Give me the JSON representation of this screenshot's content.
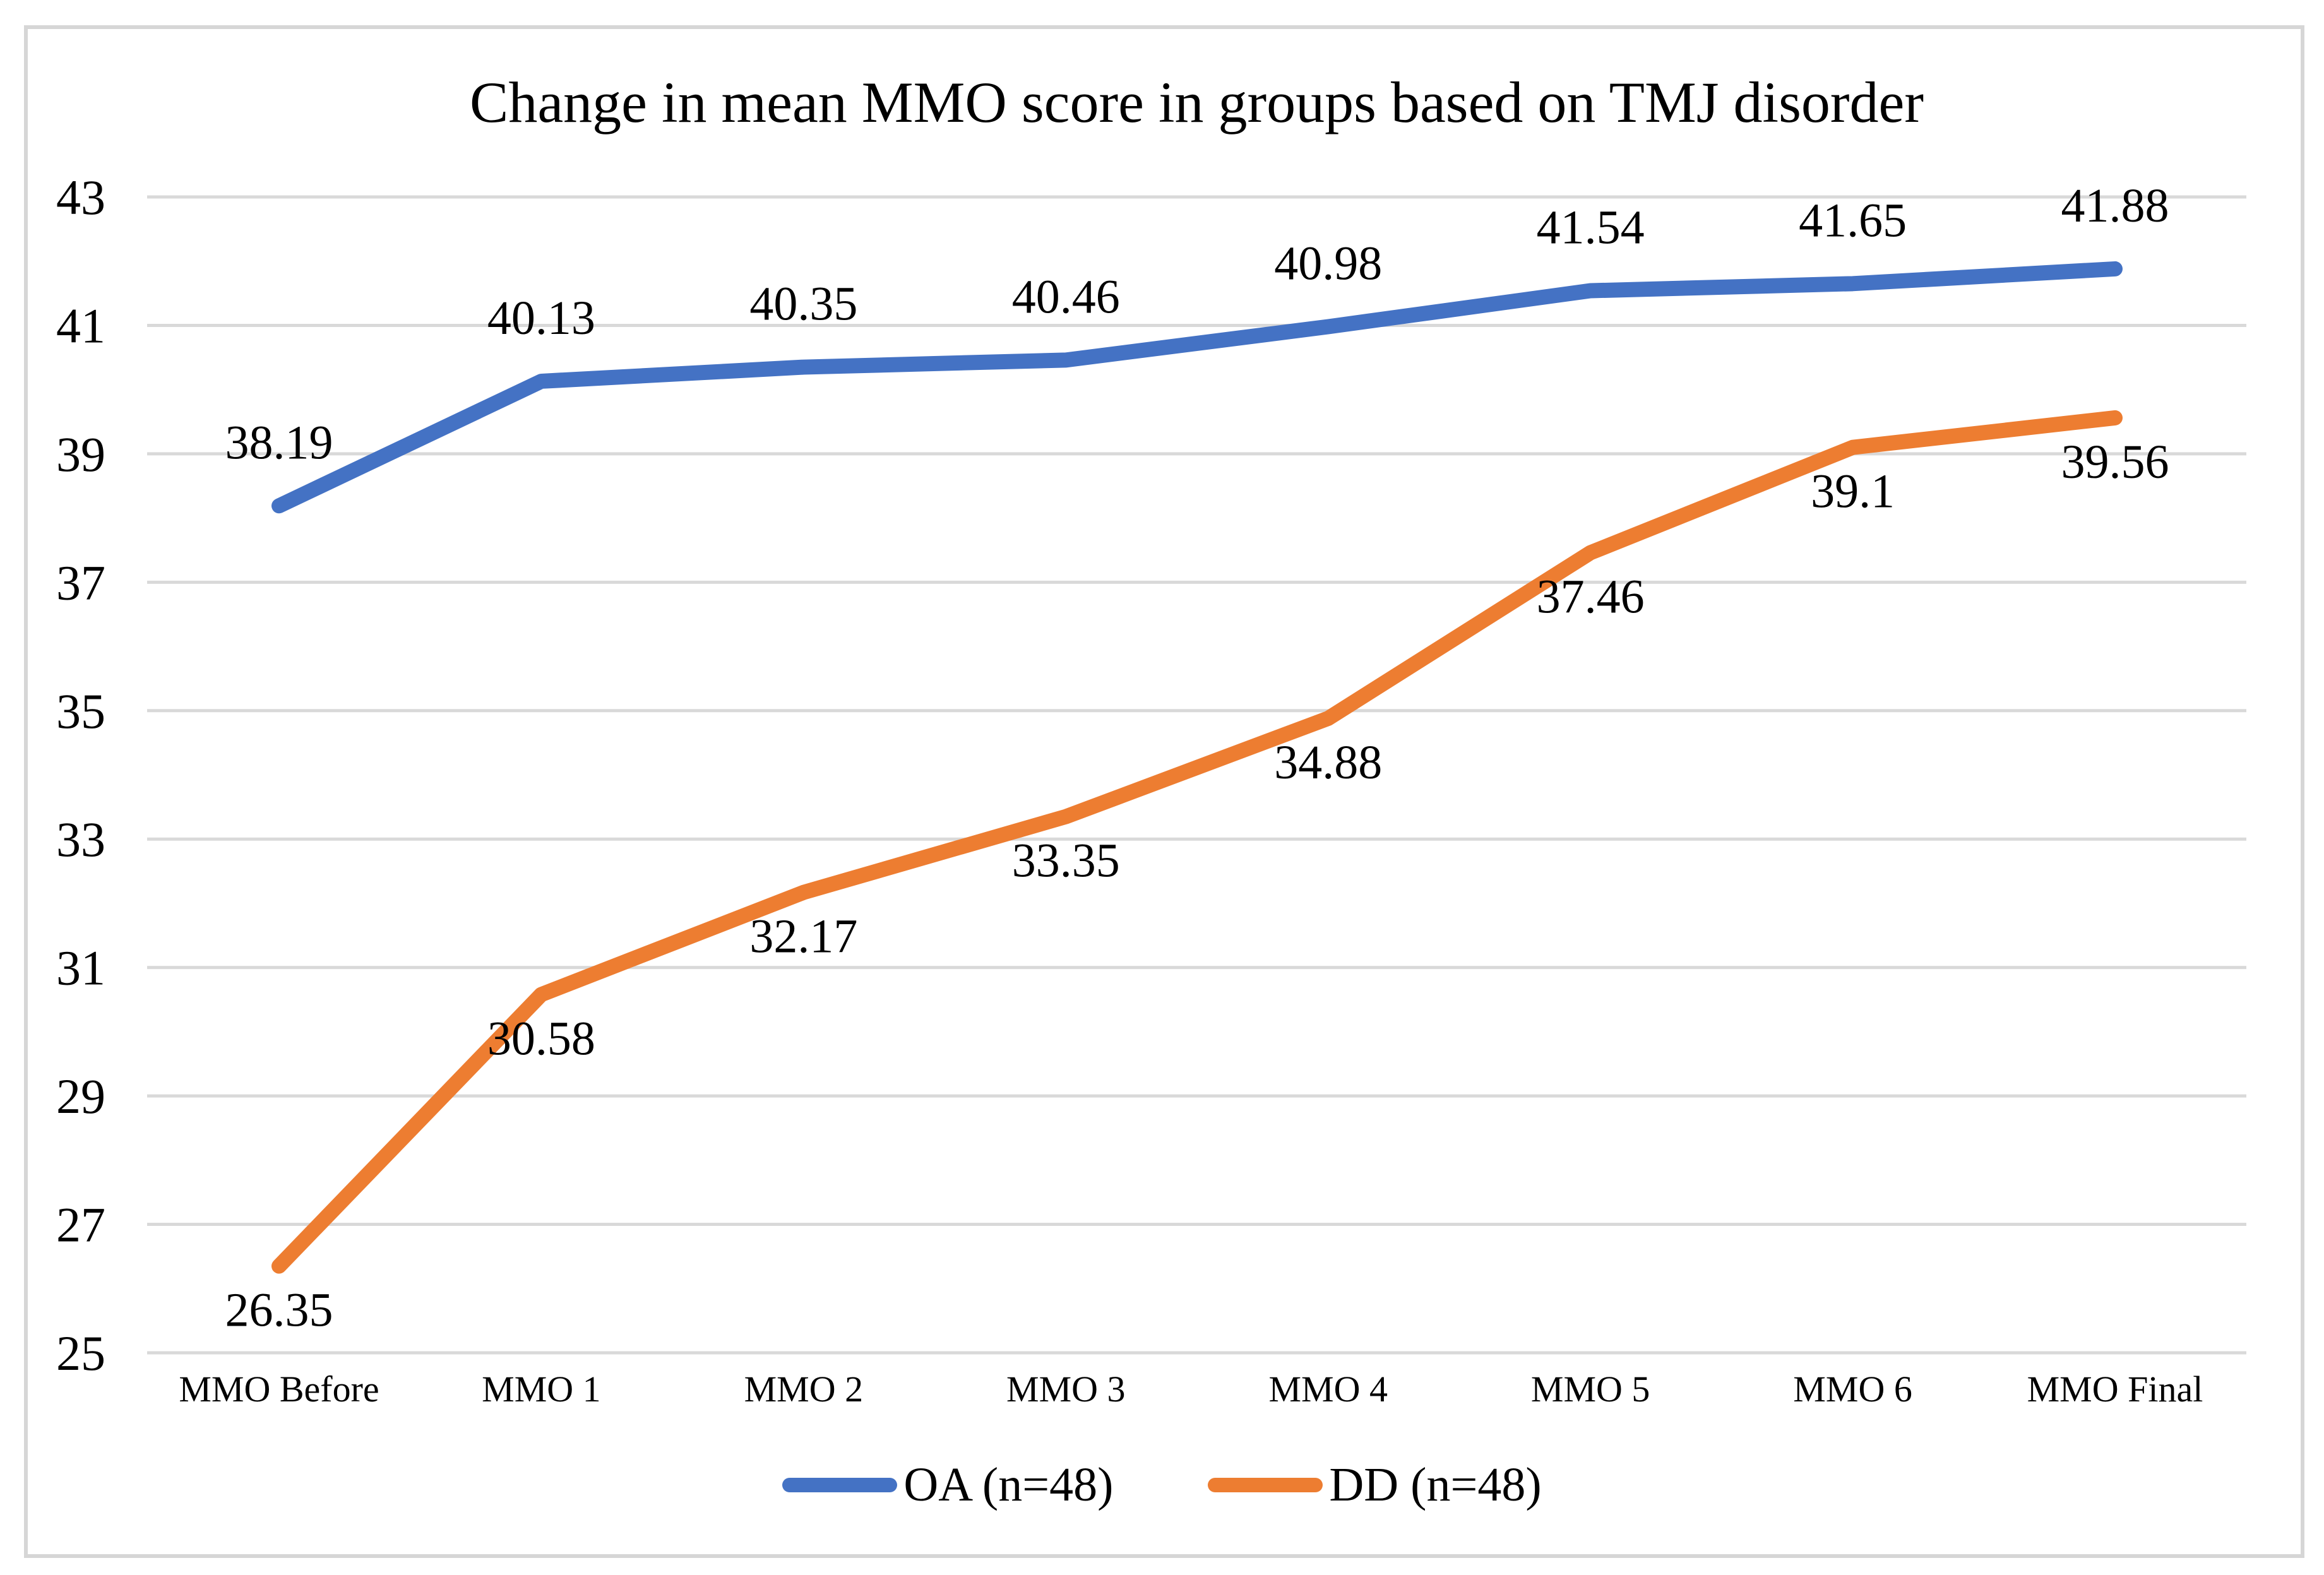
{
  "chart_data": {
    "type": "line",
    "title": "Change in mean MMO score in groups based on TMJ disorder",
    "categories": [
      "MMO Before",
      "MMO 1",
      "MMO 2",
      "MMO 3",
      "MMO 4",
      "MMO 5",
      "MMO 6",
      "MMO Final"
    ],
    "series": [
      {
        "name": "OA (n=48)",
        "color": "#4472C4",
        "values": [
          38.19,
          40.13,
          40.35,
          40.46,
          40.98,
          41.54,
          41.65,
          41.88
        ],
        "labels_position": "above"
      },
      {
        "name": "DD (n=48)",
        "color": "#ED7D31",
        "values": [
          26.35,
          30.58,
          32.17,
          33.35,
          34.88,
          37.46,
          39.1,
          39.56
        ],
        "labels_position": "below"
      }
    ],
    "yticks": [
      25,
      27,
      29,
      31,
      33,
      35,
      37,
      39,
      41,
      43
    ],
    "ylim": [
      25,
      43
    ],
    "xlabel": "",
    "ylabel": "",
    "grid": "horizontal",
    "gridline_color": "#D9D9D9",
    "data_labels": true,
    "legend_position": "bottom"
  }
}
